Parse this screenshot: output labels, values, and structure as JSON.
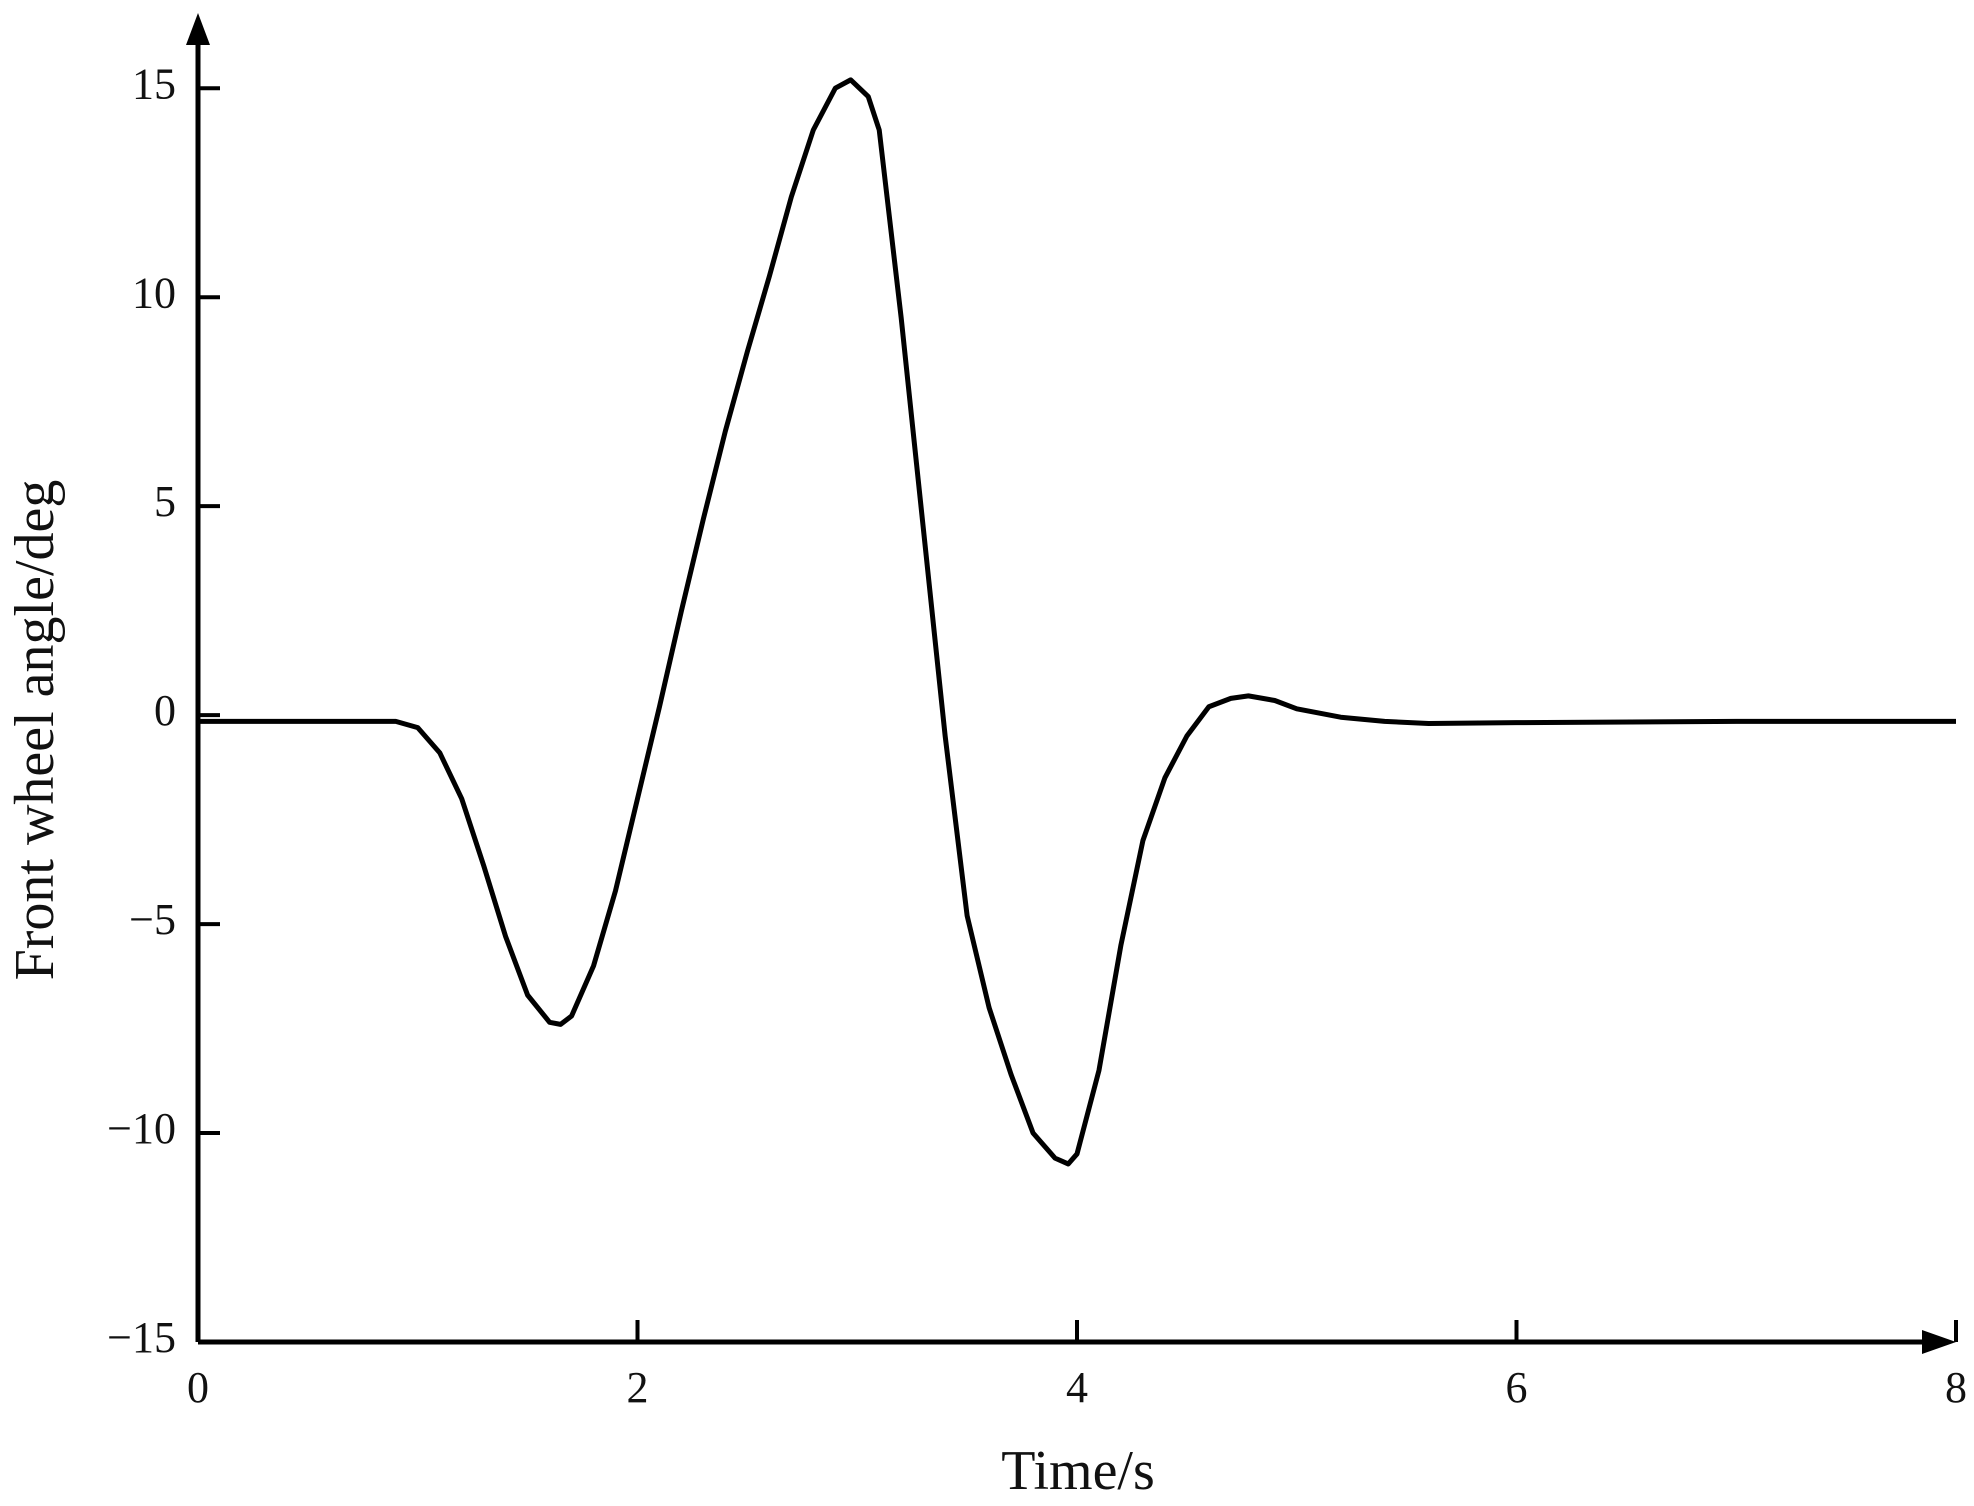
{
  "chart_data": {
    "type": "line",
    "xlabel": "Time/s",
    "ylabel": "Front wheel angle/deg",
    "x": [
      0,
      0.5,
      0.9,
      1.0,
      1.1,
      1.2,
      1.3,
      1.4,
      1.5,
      1.6,
      1.65,
      1.7,
      1.8,
      1.9,
      2.0,
      2.1,
      2.2,
      2.3,
      2.4,
      2.5,
      2.6,
      2.7,
      2.8,
      2.9,
      2.97,
      3.05,
      3.1,
      3.2,
      3.3,
      3.4,
      3.5,
      3.6,
      3.7,
      3.8,
      3.9,
      3.96,
      4.0,
      4.1,
      4.2,
      4.3,
      4.4,
      4.5,
      4.6,
      4.7,
      4.78,
      4.9,
      5.0,
      5.2,
      5.4,
      5.6,
      6.0,
      7.0,
      8.0
    ],
    "series": [
      {
        "name": "Front wheel angle",
        "color": "#000000",
        "values": [
          -0.15,
          -0.15,
          -0.15,
          -0.3,
          -0.9,
          -2.0,
          -3.6,
          -5.3,
          -6.7,
          -7.35,
          -7.4,
          -7.2,
          -6.0,
          -4.2,
          -2.0,
          0.2,
          2.5,
          4.7,
          6.8,
          8.7,
          10.5,
          12.4,
          14.0,
          15.0,
          15.2,
          14.8,
          14.0,
          9.5,
          4.5,
          -0.5,
          -4.8,
          -7.0,
          -8.6,
          -10.0,
          -10.6,
          -10.74,
          -10.5,
          -8.5,
          -5.5,
          -3.0,
          -1.5,
          -0.5,
          0.2,
          0.4,
          0.46,
          0.35,
          0.15,
          -0.05,
          -0.15,
          -0.2,
          -0.18,
          -0.15,
          -0.15
        ]
      }
    ],
    "xlim": [
      0,
      8
    ],
    "xticks": [
      0,
      2,
      4,
      6,
      8
    ],
    "ylim": [
      -15,
      16.8
    ],
    "yticks": [
      {
        "value": -15,
        "label": "−15"
      },
      {
        "value": -10,
        "label": "−10"
      },
      {
        "value": -5,
        "label": "−5"
      },
      0,
      5,
      10,
      15
    ]
  }
}
